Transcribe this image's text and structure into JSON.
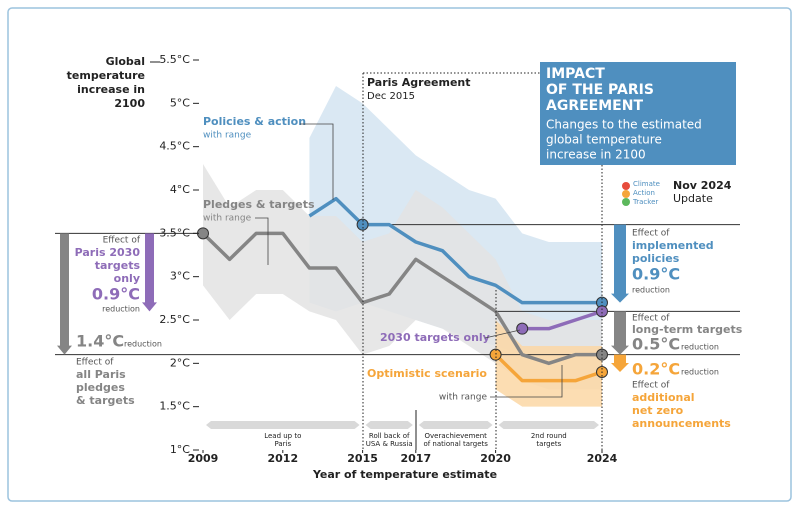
{
  "chart_data": {
    "type": "line",
    "y_axis_title": [
      "Global",
      "temperature",
      "increase in",
      "2100"
    ],
    "x_axis_title": "Year of temperature estimate",
    "x": [
      2009,
      2010,
      2011,
      2012,
      2013,
      2014,
      2015,
      2016,
      2017,
      2018,
      2019,
      2020,
      2021,
      2022,
      2023,
      2024
    ],
    "xlim": [
      2009,
      2024
    ],
    "xticks": [
      2009,
      2012,
      2015,
      2017,
      2020,
      2024
    ],
    "ylim": [
      1,
      5.5
    ],
    "yticks": [
      {
        "value": 1,
        "label": "1°C"
      },
      {
        "value": 1.5,
        "label": "1.5°C"
      },
      {
        "value": 2,
        "label": "2°C"
      },
      {
        "value": 2.5,
        "label": "2.5°C"
      },
      {
        "value": 3,
        "label": "3°C"
      },
      {
        "value": 3.5,
        "label": "3.5°C"
      },
      {
        "value": 4,
        "label": "4°C"
      },
      {
        "value": 4.5,
        "label": "4.5°C"
      },
      {
        "value": 5,
        "label": "5°C"
      },
      {
        "value": 5.5,
        "label": "5.5°C"
      }
    ],
    "series": [
      {
        "name": "Policies & action",
        "range_label": "with range",
        "color": "#4f8fbf",
        "band_color": "#d3e4f1",
        "values": [
          null,
          null,
          null,
          null,
          3.7,
          3.9,
          3.6,
          3.6,
          3.4,
          3.3,
          3.0,
          2.9,
          2.7,
          2.7,
          2.7,
          2.7
        ],
        "upper": [
          null,
          null,
          null,
          null,
          4.6,
          5.2,
          5.0,
          4.7,
          4.4,
          4.2,
          4.0,
          3.9,
          3.5,
          3.4,
          3.4,
          3.4
        ],
        "lower": [
          null,
          null,
          null,
          null,
          2.7,
          2.6,
          2.7,
          2.6,
          2.5,
          2.4,
          2.3,
          2.2,
          2.1,
          2.1,
          2.1,
          2.1
        ],
        "dots": [
          2015,
          2024
        ]
      },
      {
        "name": "Pledges & targets",
        "range_label": "with range",
        "color": "#858585",
        "band_color": "#e3e3e3",
        "values": [
          3.5,
          3.2,
          3.5,
          3.5,
          3.1,
          3.1,
          2.7,
          2.8,
          3.2,
          3.0,
          2.8,
          2.6,
          2.1,
          2.0,
          2.1,
          2.1
        ],
        "upper": [
          4.3,
          3.8,
          4.0,
          4.0,
          3.7,
          3.7,
          3.4,
          3.5,
          4.0,
          3.8,
          3.5,
          3.2,
          2.6,
          2.5,
          2.5,
          2.5
        ],
        "lower": [
          2.9,
          2.5,
          2.8,
          2.8,
          2.6,
          2.5,
          2.1,
          2.2,
          2.5,
          2.4,
          2.2,
          2.0,
          1.8,
          1.7,
          1.7,
          1.7
        ],
        "dots": [
          2009,
          2024
        ]
      },
      {
        "name": "2030 targets only",
        "color": "#8e6cb8",
        "values": [
          null,
          null,
          null,
          null,
          null,
          null,
          null,
          null,
          null,
          null,
          null,
          null,
          2.4,
          2.4,
          2.5,
          2.6
        ],
        "dots": [
          2021,
          2024
        ]
      },
      {
        "name": "Optimistic scenario",
        "range_label": "with range",
        "color": "#f5a53a",
        "band_color": "#fbd7a4",
        "values": [
          null,
          null,
          null,
          null,
          null,
          null,
          null,
          null,
          null,
          null,
          null,
          2.1,
          1.8,
          1.8,
          1.8,
          1.9
        ],
        "upper": [
          null,
          null,
          null,
          null,
          null,
          null,
          null,
          null,
          null,
          null,
          null,
          2.5,
          2.2,
          2.2,
          2.2,
          2.2
        ],
        "lower": [
          null,
          null,
          null,
          null,
          null,
          null,
          null,
          null,
          null,
          null,
          null,
          1.7,
          1.5,
          1.5,
          1.5,
          1.5
        ],
        "dots": [
          2020,
          2024
        ]
      }
    ],
    "periods": [
      {
        "label": [
          "Lead up to",
          "Paris"
        ],
        "start": 2009,
        "end": 2015
      },
      {
        "label": [
          "Roll back of",
          "USA & Russia"
        ],
        "start": 2015,
        "end": 2017
      },
      {
        "label": [
          "Overachievement",
          "of national targets"
        ],
        "start": 2017,
        "end": 2020
      },
      {
        "label": [
          "2nd round",
          "targets"
        ],
        "start": 2020,
        "end": 2024
      }
    ],
    "paris_label": [
      "Paris Agreement",
      "Dec 2015"
    ],
    "title_box": {
      "title": [
        "IMPACT",
        "OF THE PARIS",
        "AGREEMENT"
      ],
      "subtitle": [
        "Changes to the estimated",
        "global temperature",
        "increase in 2100"
      ]
    },
    "logo": [
      "Climate",
      "Action",
      "Tracker"
    ],
    "update": [
      "Nov 2024",
      "Update"
    ],
    "effects": [
      {
        "text": [
          "Effect of",
          "Paris 2030",
          "targets",
          "only"
        ],
        "value": 0.9,
        "value_label": "0.9°C",
        "unit": "reduction",
        "color": "#8e6cb8"
      },
      {
        "text": [
          "Effect of",
          "all Paris",
          "pledges",
          "& targets"
        ],
        "value": 1.4,
        "value_label": "1.4°C",
        "unit": "reduction",
        "color": "#858585"
      },
      {
        "text": [
          "Effect of",
          "implemented",
          "policies"
        ],
        "value": 0.9,
        "value_label": "0.9°C",
        "unit": "reduction",
        "color": "#4f8fbf"
      },
      {
        "text": [
          "Effect of",
          "long-term targets"
        ],
        "value": 0.5,
        "value_label": "0.5°C",
        "unit": "reduction",
        "color": "#858585"
      },
      {
        "text": [
          "Effect of",
          "additional",
          "net zero",
          "announcements"
        ],
        "value": 0.2,
        "value_label": "0.2°C",
        "unit": "reduction",
        "color": "#f5a53a"
      }
    ]
  }
}
